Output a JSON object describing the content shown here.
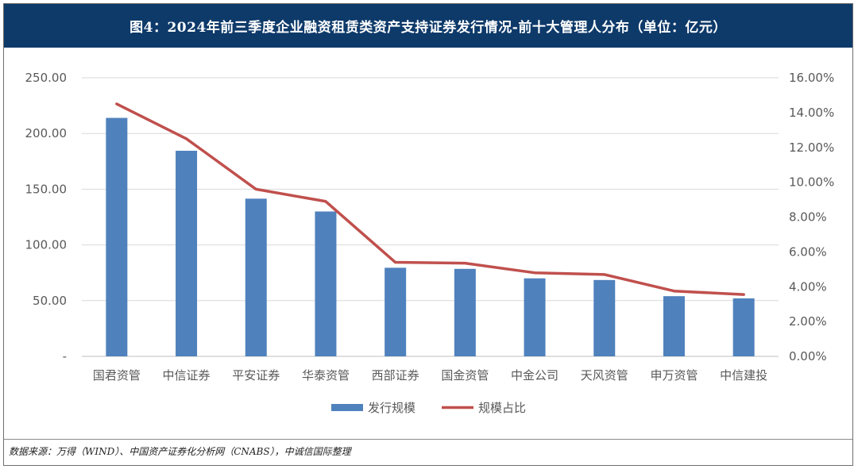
{
  "title": "图4：2024年前三季度企业融资租赁类资产支持证券发行情况-前十大管理人分布（单位：亿元）",
  "source": "数据来源：万得（WIND）、中国资产证券化分析网（CNABS），中诚信国际整理",
  "colors": {
    "header_bg": "#0e3a6a",
    "bar": "#4f81bd",
    "line": "#c0504d",
    "grid": "#d9d9d9"
  },
  "chart_data": {
    "type": "bar",
    "categories": [
      "国君资管",
      "中信证券",
      "平安证券",
      "华泰资管",
      "西部证券",
      "国金资管",
      "中金公司",
      "天风资管",
      "申万资管",
      "中信建投"
    ],
    "series": [
      {
        "name": "发行规模",
        "type": "bar",
        "axis": "left",
        "values": [
          214,
          184.5,
          141.5,
          130,
          79.5,
          78.5,
          70,
          68.5,
          54,
          52
        ]
      },
      {
        "name": "规模占比",
        "type": "line",
        "axis": "right",
        "values": [
          14.5,
          12.5,
          9.6,
          8.9,
          5.4,
          5.35,
          4.8,
          4.7,
          3.75,
          3.55
        ]
      }
    ],
    "y_left": {
      "range": [
        0,
        250
      ],
      "ticks": [
        "-",
        "50.00",
        "100.00",
        "150.00",
        "200.00",
        "250.00"
      ]
    },
    "y_right": {
      "range": [
        0,
        16
      ],
      "ticks": [
        "0.00%",
        "2.00%",
        "4.00%",
        "6.00%",
        "8.00%",
        "10.00%",
        "12.00%",
        "14.00%",
        "16.00%"
      ]
    },
    "grid": true,
    "legend_position": "bottom"
  }
}
